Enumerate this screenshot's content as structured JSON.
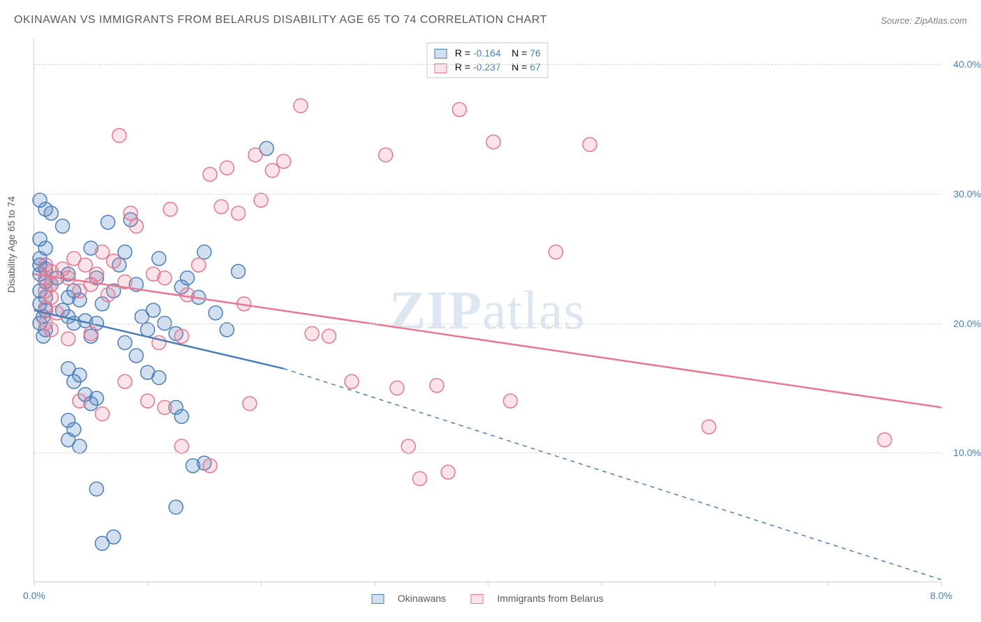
{
  "title": "OKINAWAN VS IMMIGRANTS FROM BELARUS DISABILITY AGE 65 TO 74 CORRELATION CHART",
  "source": "Source: ZipAtlas.com",
  "ylabel": "Disability Age 65 to 74",
  "watermark_parts": [
    "ZIP",
    "atlas"
  ],
  "chart": {
    "type": "scatter",
    "background_color": "#ffffff",
    "grid_color": "#d8d8d8",
    "axis_color": "#cccccc",
    "xlim": [
      0.0,
      8.0
    ],
    "ylim": [
      0.0,
      42.0
    ],
    "xticks": [
      0.0,
      1.0,
      2.0,
      3.0,
      4.0,
      5.0,
      6.0,
      7.0,
      8.0
    ],
    "xtick_labels_shown": {
      "0.0": "0.0%",
      "8.0": "8.0%"
    },
    "yticks": [
      10.0,
      20.0,
      30.0,
      40.0
    ],
    "ytick_labels": [
      "10.0%",
      "20.0%",
      "30.0%",
      "40.0%"
    ],
    "label_color": "#4a7ebb",
    "label_fontsize": 14,
    "title_color": "#595959",
    "title_fontsize": 16,
    "marker_radius": 10,
    "marker_stroke_width": 1.5,
    "marker_fill_opacity": 0.25,
    "series": [
      {
        "name": "Okinawans",
        "color": "#4a7ebb",
        "fill": "rgba(74,126,187,0.25)",
        "R": "-0.164",
        "N": "76",
        "trend": {
          "x1": 0.0,
          "y1": 21.0,
          "x2": 2.2,
          "y2": 16.5,
          "dash_x2": 8.0,
          "dash_y2": 0.2,
          "width": 2.5
        },
        "points": [
          [
            0.05,
            29.5
          ],
          [
            0.1,
            28.8
          ],
          [
            0.15,
            28.5
          ],
          [
            0.05,
            26.5
          ],
          [
            0.1,
            25.8
          ],
          [
            0.05,
            25.0
          ],
          [
            0.1,
            24.2
          ],
          [
            0.05,
            23.8
          ],
          [
            0.1,
            23.2
          ],
          [
            0.15,
            23.0
          ],
          [
            0.05,
            22.5
          ],
          [
            0.1,
            22.0
          ],
          [
            0.05,
            21.5
          ],
          [
            0.1,
            21.0
          ],
          [
            0.08,
            20.5
          ],
          [
            0.05,
            20.0
          ],
          [
            0.1,
            19.5
          ],
          [
            0.08,
            19.0
          ],
          [
            0.05,
            24.5
          ],
          [
            0.2,
            23.5
          ],
          [
            0.25,
            27.5
          ],
          [
            0.3,
            23.8
          ],
          [
            0.35,
            22.5
          ],
          [
            0.3,
            22.0
          ],
          [
            0.25,
            21.0
          ],
          [
            0.3,
            20.5
          ],
          [
            0.35,
            20.0
          ],
          [
            0.4,
            21.8
          ],
          [
            0.45,
            20.2
          ],
          [
            0.5,
            25.8
          ],
          [
            0.55,
            23.5
          ],
          [
            0.6,
            21.5
          ],
          [
            0.55,
            20.0
          ],
          [
            0.5,
            19.0
          ],
          [
            0.65,
            27.8
          ],
          [
            0.7,
            22.5
          ],
          [
            0.75,
            24.5
          ],
          [
            0.8,
            25.5
          ],
          [
            0.85,
            28.0
          ],
          [
            0.9,
            23.0
          ],
          [
            0.95,
            20.5
          ],
          [
            1.0,
            19.5
          ],
          [
            1.05,
            21.0
          ],
          [
            1.1,
            25.0
          ],
          [
            1.15,
            20.0
          ],
          [
            1.25,
            19.2
          ],
          [
            1.3,
            22.8
          ],
          [
            1.35,
            23.5
          ],
          [
            1.45,
            22.0
          ],
          [
            1.5,
            25.5
          ],
          [
            1.6,
            20.8
          ],
          [
            1.7,
            19.5
          ],
          [
            1.8,
            24.0
          ],
          [
            2.05,
            33.5
          ],
          [
            0.3,
            16.5
          ],
          [
            0.35,
            15.5
          ],
          [
            0.4,
            16.0
          ],
          [
            0.45,
            14.5
          ],
          [
            0.5,
            13.8
          ],
          [
            0.55,
            14.2
          ],
          [
            0.3,
            12.5
          ],
          [
            0.35,
            11.8
          ],
          [
            0.3,
            11.0
          ],
          [
            0.4,
            10.5
          ],
          [
            0.55,
            7.2
          ],
          [
            0.6,
            3.0
          ],
          [
            0.8,
            18.5
          ],
          [
            0.9,
            17.5
          ],
          [
            1.0,
            16.2
          ],
          [
            1.1,
            15.8
          ],
          [
            1.25,
            13.5
          ],
          [
            1.3,
            12.8
          ],
          [
            1.4,
            9.0
          ],
          [
            1.5,
            9.2
          ],
          [
            1.25,
            5.8
          ],
          [
            0.7,
            3.5
          ]
        ]
      },
      {
        "name": "Immigants from Belarus",
        "display_name": "Immigrants from Belarus",
        "color": "#e8788f",
        "fill": "rgba(232,120,143,0.20)",
        "R": "-0.237",
        "N": "67",
        "trend": {
          "x1": 0.0,
          "y1": 23.8,
          "x2": 8.0,
          "y2": 13.5,
          "width": 2.5
        },
        "points": [
          [
            0.1,
            24.5
          ],
          [
            0.15,
            24.0
          ],
          [
            0.1,
            23.5
          ],
          [
            0.15,
            23.0
          ],
          [
            0.1,
            22.5
          ],
          [
            0.15,
            22.0
          ],
          [
            0.1,
            21.2
          ],
          [
            0.2,
            20.8
          ],
          [
            0.1,
            20.0
          ],
          [
            0.15,
            19.5
          ],
          [
            0.25,
            24.2
          ],
          [
            0.3,
            23.5
          ],
          [
            0.35,
            25.0
          ],
          [
            0.4,
            22.5
          ],
          [
            0.45,
            24.5
          ],
          [
            0.5,
            23.0
          ],
          [
            0.55,
            23.8
          ],
          [
            0.6,
            25.5
          ],
          [
            0.65,
            22.2
          ],
          [
            0.7,
            24.8
          ],
          [
            0.8,
            23.2
          ],
          [
            0.75,
            34.5
          ],
          [
            0.85,
            28.5
          ],
          [
            0.9,
            27.5
          ],
          [
            1.05,
            23.8
          ],
          [
            1.15,
            23.5
          ],
          [
            1.2,
            28.8
          ],
          [
            1.3,
            19.0
          ],
          [
            1.35,
            22.2
          ],
          [
            1.45,
            24.5
          ],
          [
            1.55,
            31.5
          ],
          [
            1.65,
            29.0
          ],
          [
            1.7,
            32.0
          ],
          [
            1.8,
            28.5
          ],
          [
            1.85,
            21.5
          ],
          [
            1.95,
            33.0
          ],
          [
            2.0,
            29.5
          ],
          [
            2.1,
            31.8
          ],
          [
            2.2,
            32.5
          ],
          [
            2.35,
            36.8
          ],
          [
            2.45,
            19.2
          ],
          [
            2.6,
            19.0
          ],
          [
            2.8,
            15.5
          ],
          [
            3.1,
            33.0
          ],
          [
            3.2,
            15.0
          ],
          [
            3.3,
            10.5
          ],
          [
            3.4,
            8.0
          ],
          [
            3.55,
            15.2
          ],
          [
            3.65,
            8.5
          ],
          [
            3.75,
            36.5
          ],
          [
            4.05,
            34.0
          ],
          [
            4.2,
            14.0
          ],
          [
            4.9,
            33.8
          ],
          [
            4.6,
            25.5
          ],
          [
            5.95,
            12.0
          ],
          [
            7.5,
            11.0
          ],
          [
            1.0,
            14.0
          ],
          [
            1.15,
            13.5
          ],
          [
            1.3,
            10.5
          ],
          [
            1.55,
            9.0
          ],
          [
            1.1,
            18.5
          ],
          [
            0.5,
            19.2
          ],
          [
            0.8,
            15.5
          ],
          [
            0.4,
            14.0
          ],
          [
            0.6,
            13.0
          ],
          [
            1.9,
            13.8
          ],
          [
            0.3,
            18.8
          ]
        ]
      }
    ],
    "legend_top": {
      "border_color": "#cccccc",
      "text_color": "#595959"
    },
    "legend_bottom_labels": [
      "Okinawans",
      "Immigrants from Belarus"
    ]
  }
}
